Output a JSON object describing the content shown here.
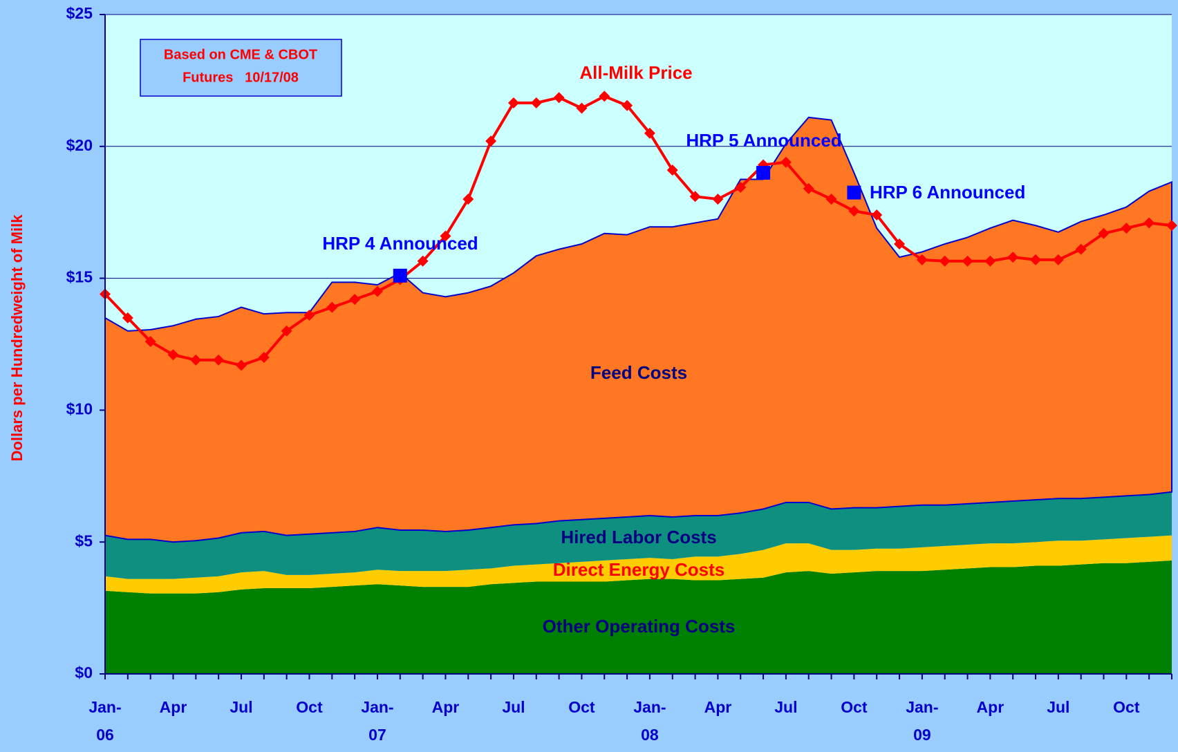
{
  "chart_data": {
    "type": "stacked-area-line",
    "y_label": "Dollars per Hundredweight of Milk",
    "categories": [
      "Jan-06",
      null,
      null,
      "Apr",
      null,
      null,
      "Jul",
      null,
      null,
      "Oct",
      null,
      null,
      "Jan-07",
      null,
      null,
      "Apr",
      null,
      null,
      "Jul",
      null,
      null,
      "Oct",
      null,
      null,
      "Jan-08",
      null,
      null,
      "Apr",
      null,
      null,
      "Jul",
      null,
      null,
      "Oct",
      null,
      null,
      "Jan-09",
      null,
      null,
      "Apr",
      null,
      null,
      "Jul",
      null,
      null,
      "Oct",
      null,
      null
    ],
    "series": [
      {
        "name": "Other Operating Costs",
        "color": "#008000",
        "label_color": "#000080",
        "values": [
          3.15,
          3.1,
          3.05,
          3.05,
          3.05,
          3.1,
          3.2,
          3.25,
          3.25,
          3.25,
          3.3,
          3.35,
          3.4,
          3.35,
          3.3,
          3.3,
          3.3,
          3.4,
          3.45,
          3.5,
          3.5,
          3.5,
          3.5,
          3.55,
          3.6,
          3.6,
          3.55,
          3.55,
          3.6,
          3.65,
          3.85,
          3.9,
          3.8,
          3.85,
          3.9,
          3.9,
          3.9,
          3.95,
          4.0,
          4.05,
          4.05,
          4.1,
          4.1,
          4.15,
          4.2,
          4.2,
          4.25,
          4.3
        ]
      },
      {
        "name": "Direct Energy Costs",
        "color": "#ffcc00",
        "label_color": "#ff0000",
        "values": [
          0.55,
          0.5,
          0.55,
          0.55,
          0.6,
          0.6,
          0.65,
          0.65,
          0.5,
          0.5,
          0.5,
          0.5,
          0.55,
          0.55,
          0.6,
          0.6,
          0.65,
          0.6,
          0.65,
          0.65,
          0.7,
          0.75,
          0.8,
          0.8,
          0.8,
          0.75,
          0.9,
          0.9,
          0.95,
          1.05,
          1.1,
          1.05,
          0.9,
          0.85,
          0.85,
          0.85,
          0.9,
          0.9,
          0.9,
          0.9,
          0.9,
          0.9,
          0.95,
          0.9,
          0.9,
          0.95,
          0.95,
          0.95
        ]
      },
      {
        "name": "Hired Labor Costs",
        "color": "#0f8f80",
        "label_color": "#000080",
        "values": [
          1.55,
          1.5,
          1.5,
          1.4,
          1.4,
          1.45,
          1.5,
          1.5,
          1.5,
          1.55,
          1.55,
          1.55,
          1.6,
          1.55,
          1.55,
          1.5,
          1.5,
          1.55,
          1.55,
          1.55,
          1.6,
          1.6,
          1.6,
          1.6,
          1.6,
          1.6,
          1.55,
          1.55,
          1.55,
          1.55,
          1.55,
          1.55,
          1.55,
          1.6,
          1.55,
          1.6,
          1.6,
          1.55,
          1.55,
          1.55,
          1.6,
          1.6,
          1.6,
          1.6,
          1.6,
          1.6,
          1.6,
          1.65
        ]
      },
      {
        "name": "Feed Costs",
        "color": "#ff7722",
        "label_color": "#000080",
        "values": [
          8.25,
          7.9,
          7.95,
          8.2,
          8.4,
          8.4,
          8.55,
          8.25,
          8.45,
          8.4,
          9.5,
          9.45,
          9.2,
          9.75,
          9.0,
          8.9,
          9.0,
          9.15,
          9.55,
          10.15,
          10.3,
          10.45,
          10.8,
          10.7,
          10.95,
          11.0,
          11.1,
          11.25,
          12.65,
          12.5,
          13.6,
          14.6,
          14.75,
          12.7,
          10.6,
          9.45,
          9.6,
          9.9,
          10.1,
          10.4,
          10.65,
          10.4,
          10.1,
          10.5,
          10.7,
          10.95,
          11.5,
          11.75
        ]
      }
    ],
    "line": {
      "name": "All-Milk Price",
      "color": "#ff0000",
      "values": [
        14.4,
        13.5,
        12.6,
        12.1,
        11.9,
        11.9,
        11.7,
        12.0,
        13.0,
        13.6,
        13.9,
        14.2,
        14.5,
        14.95,
        15.65,
        16.6,
        18.0,
        20.2,
        21.65,
        21.65,
        21.85,
        21.45,
        21.9,
        21.55,
        20.5,
        19.1,
        18.1,
        18.0,
        18.45,
        19.3,
        19.4,
        18.4,
        18.0,
        17.55,
        17.4,
        16.3,
        15.7,
        15.65,
        15.65,
        15.65,
        15.8,
        15.7,
        15.7,
        16.1,
        16.7,
        16.9,
        17.1,
        17.0
      ]
    },
    "announcements": [
      {
        "label": "HRP 4 Announced",
        "at": 13,
        "value": 15.1
      },
      {
        "label": "HRP 5 Announced",
        "at": 29,
        "value": 19.0
      },
      {
        "label": "HRP 6 Announced",
        "at": 33,
        "value": 18.25
      }
    ],
    "announcement_color": "#0000ff",
    "note": [
      "Based on CME & CBOT",
      "Futures   10/17/08"
    ],
    "ylim": [
      0,
      25
    ],
    "yticks": [
      {
        "value": 0,
        "label": "$0"
      },
      {
        "value": 5,
        "label": "$5"
      },
      {
        "value": 10,
        "label": "$10"
      },
      {
        "value": 15,
        "label": "$15"
      },
      {
        "value": 20,
        "label": "$20"
      },
      {
        "value": 25,
        "label": "$25"
      }
    ],
    "grid": true,
    "plot_background": "#ccffff"
  }
}
